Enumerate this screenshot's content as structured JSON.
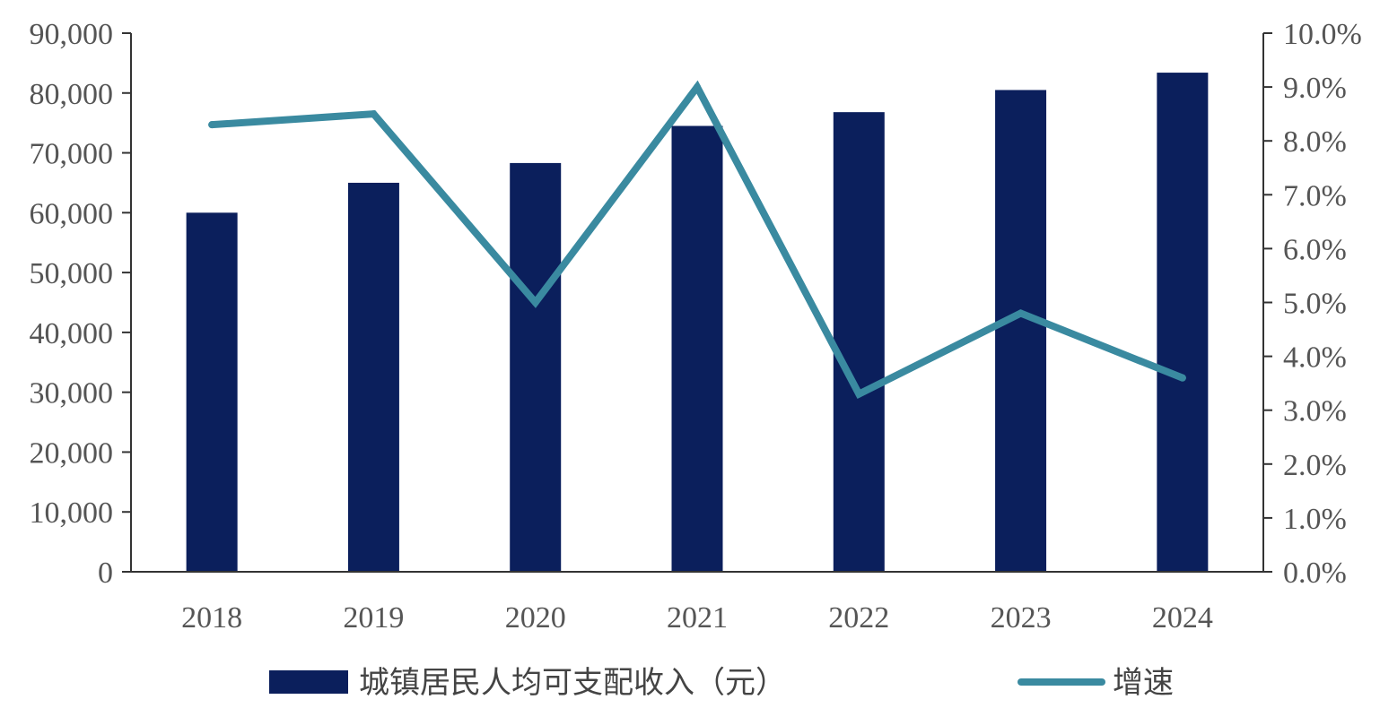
{
  "chart_data": {
    "type": "bar",
    "categories": [
      "2018",
      "2019",
      "2020",
      "2021",
      "2022",
      "2023",
      "2024"
    ],
    "series": [
      {
        "name": "城镇居民人均可支配收入（元）",
        "type": "bar",
        "axis": "left",
        "values": [
          60000,
          65000,
          68300,
          74500,
          76800,
          80500,
          83400
        ]
      },
      {
        "name": "增速",
        "type": "line",
        "axis": "right",
        "values": [
          8.3,
          8.5,
          5.0,
          9.0,
          3.3,
          4.8,
          3.6
        ]
      }
    ],
    "y_left": {
      "range": [
        0,
        90000
      ],
      "ticks": [
        "0",
        "10,000",
        "20,000",
        "30,000",
        "40,000",
        "50,000",
        "60,000",
        "70,000",
        "80,000",
        "90,000"
      ]
    },
    "y_right": {
      "range": [
        0,
        10
      ],
      "ticks": [
        "0.0%",
        "1.0%",
        "2.0%",
        "3.0%",
        "4.0%",
        "5.0%",
        "6.0%",
        "7.0%",
        "8.0%",
        "9.0%",
        "10.0%"
      ]
    },
    "legend_position": "bottom",
    "grid": false,
    "colors": {
      "bar": "#0b1f5c",
      "line": "#3a8aa0",
      "axis": "#333333"
    }
  }
}
